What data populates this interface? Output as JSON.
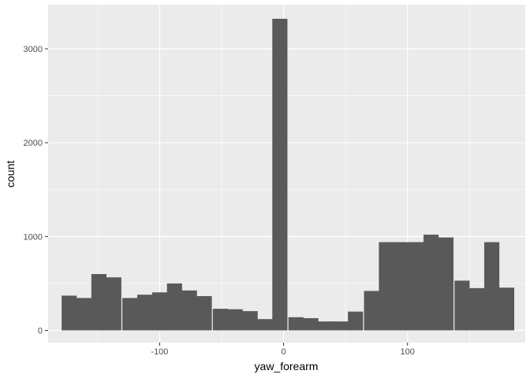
{
  "chart_data": {
    "type": "bar",
    "title": "",
    "xlabel": "yaw_forearm",
    "ylabel": "count",
    "xlim": [
      -190,
      195
    ],
    "ylim": [
      -130,
      3470
    ],
    "x_ticks": [
      -100,
      0,
      100
    ],
    "x_tick_labels": [
      "-100",
      "0",
      "100"
    ],
    "y_ticks": [
      0,
      1000,
      2000,
      3000
    ],
    "y_tick_labels": [
      "0",
      "1000",
      "2000",
      "3000"
    ],
    "grid": true,
    "legend": "none",
    "bin_width": 12.2,
    "bins": [
      {
        "x": -173,
        "count": 370
      },
      {
        "x": -161,
        "count": 345
      },
      {
        "x": -149,
        "count": 600
      },
      {
        "x": -137,
        "count": 565
      },
      {
        "x": -124,
        "count": 345
      },
      {
        "x": -112,
        "count": 380
      },
      {
        "x": -100,
        "count": 405
      },
      {
        "x": -88,
        "count": 500
      },
      {
        "x": -76,
        "count": 425
      },
      {
        "x": -64,
        "count": 365
      },
      {
        "x": -51,
        "count": 230
      },
      {
        "x": -39,
        "count": 225
      },
      {
        "x": -27,
        "count": 205
      },
      {
        "x": -15,
        "count": 120
      },
      {
        "x": -3,
        "count": 3320
      },
      {
        "x": 10,
        "count": 140
      },
      {
        "x": 22,
        "count": 130
      },
      {
        "x": 34,
        "count": 95
      },
      {
        "x": 46,
        "count": 95
      },
      {
        "x": 58,
        "count": 200
      },
      {
        "x": 71,
        "count": 420
      },
      {
        "x": 83,
        "count": 940
      },
      {
        "x": 95,
        "count": 940
      },
      {
        "x": 107,
        "count": 940
      },
      {
        "x": 119,
        "count": 1020
      },
      {
        "x": 131,
        "count": 990
      },
      {
        "x": 144,
        "count": 530
      },
      {
        "x": 156,
        "count": 450
      },
      {
        "x": 168,
        "count": 940
      },
      {
        "x": 180,
        "count": 455
      }
    ]
  },
  "colors": {
    "panel": "#EBEBEB",
    "grid_major": "#FFFFFF",
    "bar": "#595959",
    "tick": "#333333",
    "tick_text": "#4D4D4D"
  }
}
